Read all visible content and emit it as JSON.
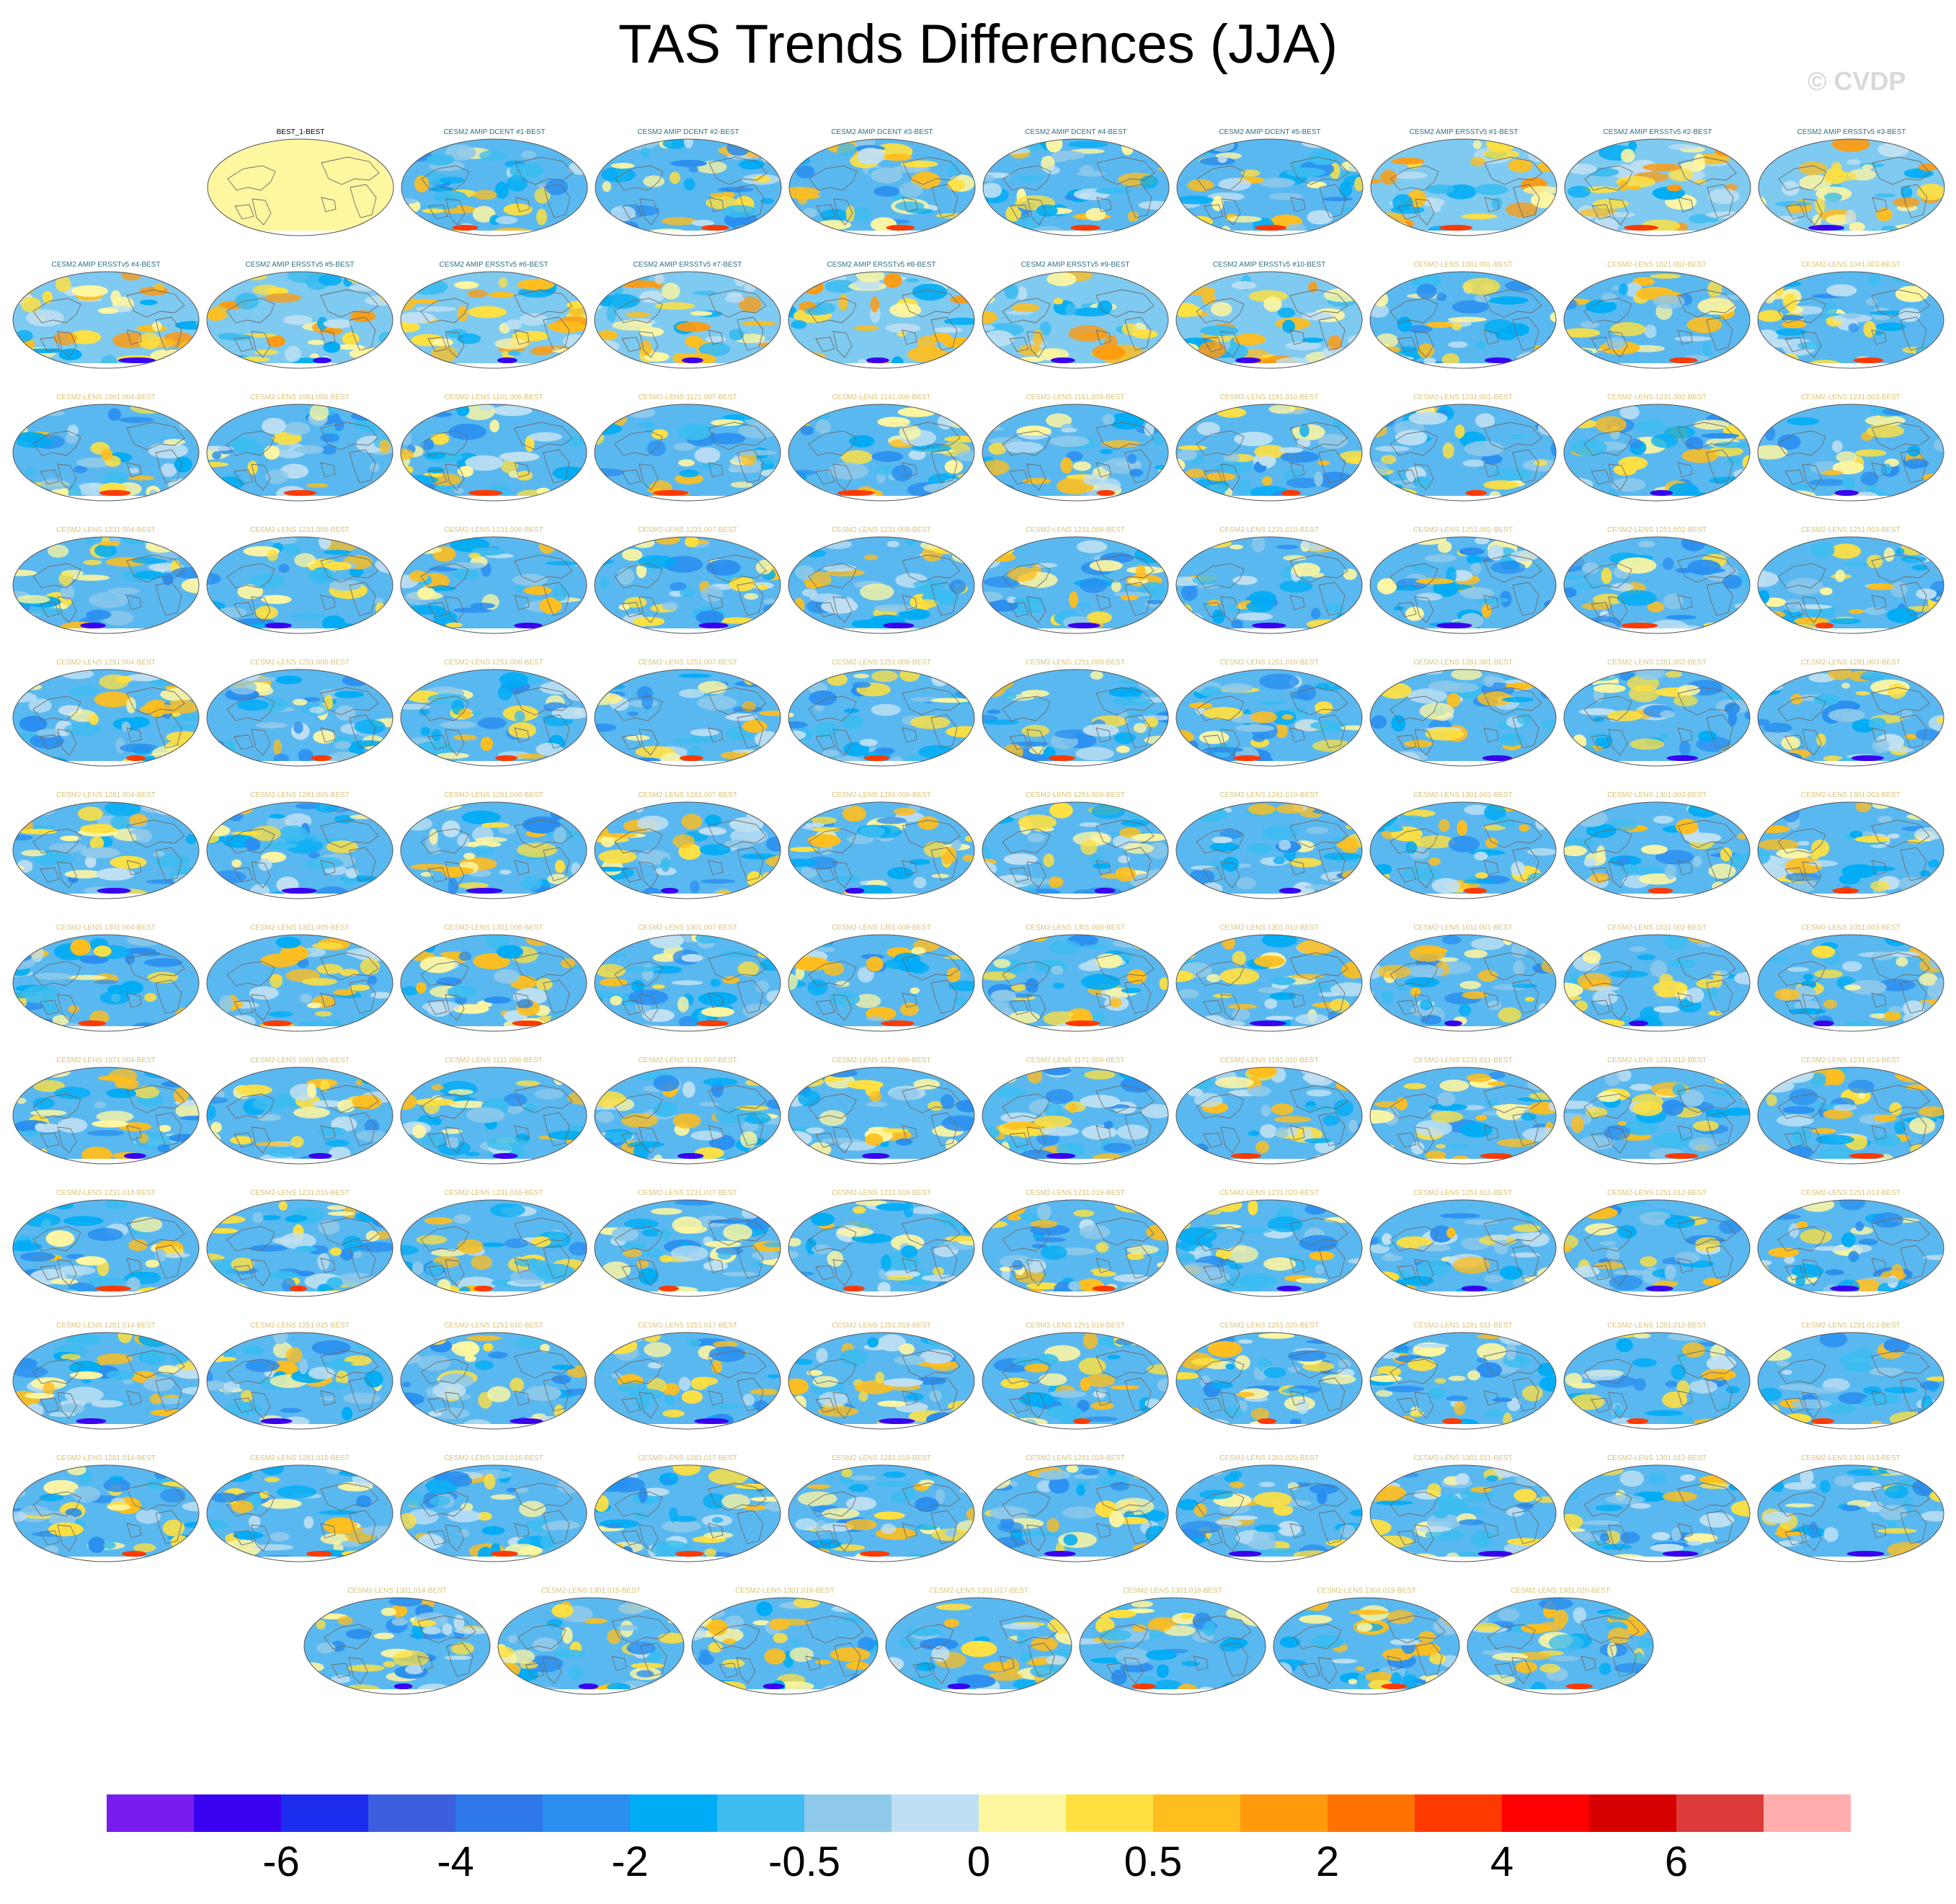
{
  "title": "TAS Trends Differences (JJA)",
  "watermark": "© CVDP",
  "chart_data": {
    "type": "heatmap",
    "title": "TAS Trends Differences (JJA)",
    "colorbar": {
      "colors": [
        "#7a1cf0",
        "#3a00f0",
        "#1c2df0",
        "#3c5fe0",
        "#2f78ec",
        "#2a8ff0",
        "#00acf5",
        "#3cbcf0",
        "#8ec9ea",
        "#bfe0f3",
        "#fff6a0",
        "#ffe040",
        "#ffbe1e",
        "#ff9a0e",
        "#ff7200",
        "#ff3a00",
        "#ff0000",
        "#d70000",
        "#dd3a3a",
        "#ffadad"
      ],
      "tick_labels": [
        "-6",
        "-4",
        "-2",
        "-0.5",
        "0",
        "0.5",
        "2",
        "4",
        "6"
      ],
      "tick_boundaries": [
        2,
        4,
        6,
        8,
        10,
        12,
        14,
        16,
        18
      ]
    },
    "panels": [
      {
        "label": "BEST_1-BEST",
        "kind": "ref"
      },
      {
        "label": "CESM2 AMIP DCENT #1-BEST",
        "kind": "dcent"
      },
      {
        "label": "CESM2 AMIP DCENT #2-BEST",
        "kind": "dcent"
      },
      {
        "label": "CESM2 AMIP DCENT #3-BEST",
        "kind": "dcent"
      },
      {
        "label": "CESM2 AMIP DCENT #4-BEST",
        "kind": "dcent"
      },
      {
        "label": "CESM2 AMIP DCENT #5-BEST",
        "kind": "dcent"
      },
      {
        "label": "CESM2 AMIP ERSSTv5 #1-BEST",
        "kind": "ersst"
      },
      {
        "label": "CESM2 AMIP ERSSTv5 #2-BEST",
        "kind": "ersst"
      },
      {
        "label": "CESM2 AMIP ERSSTv5 #3-BEST",
        "kind": "ersst"
      },
      {
        "label": "CESM2 AMIP ERSSTv5 #4-BEST",
        "kind": "ersst"
      },
      {
        "label": "CESM2 AMIP ERSSTv5 #5-BEST",
        "kind": "ersst"
      },
      {
        "label": "CESM2 AMIP ERSSTv5 #6-BEST",
        "kind": "ersst"
      },
      {
        "label": "CESM2 AMIP ERSSTv5 #7-BEST",
        "kind": "ersst"
      },
      {
        "label": "CESM2 AMIP ERSSTv5 #8-BEST",
        "kind": "ersst"
      },
      {
        "label": "CESM2 AMIP ERSSTv5 #9-BEST",
        "kind": "ersst"
      },
      {
        "label": "CESM2 AMIP ERSSTv5 #10-BEST",
        "kind": "ersst"
      },
      {
        "label": "CESM2-LENS 1001.001-BEST",
        "kind": "lens"
      },
      {
        "label": "CESM2-LENS 1021.002-BEST",
        "kind": "lens"
      },
      {
        "label": "CESM2-LENS 1041.003-BEST",
        "kind": "lens"
      },
      {
        "label": "CESM2-LENS 1061.004-BEST",
        "kind": "lens"
      },
      {
        "label": "CESM2-LENS 1081.005-BEST",
        "kind": "lens"
      },
      {
        "label": "CESM2-LENS 1101.006-BEST",
        "kind": "lens"
      },
      {
        "label": "CESM2-LENS 1121.007-BEST",
        "kind": "lens"
      },
      {
        "label": "CESM2-LENS 1141.008-BEST",
        "kind": "lens"
      },
      {
        "label": "CESM2-LENS 1161.009-BEST",
        "kind": "lens"
      },
      {
        "label": "CESM2-LENS 1181.010-BEST",
        "kind": "lens"
      },
      {
        "label": "CESM2-LENS 1231.001-BEST",
        "kind": "lens"
      },
      {
        "label": "CESM2-LENS 1231.002-BEST",
        "kind": "lens"
      },
      {
        "label": "CESM2-LENS 1231.003-BEST",
        "kind": "lens"
      },
      {
        "label": "CESM2-LENS 1231.004-BEST",
        "kind": "lens"
      },
      {
        "label": "CESM2-LENS 1231.005-BEST",
        "kind": "lens"
      },
      {
        "label": "CESM2-LENS 1231.006-BEST",
        "kind": "lens"
      },
      {
        "label": "CESM2-LENS 1231.007-BEST",
        "kind": "lens"
      },
      {
        "label": "CESM2-LENS 1231.008-BEST",
        "kind": "lens"
      },
      {
        "label": "CESM2-LENS 1231.009-BEST",
        "kind": "lens"
      },
      {
        "label": "CESM2-LENS 1231.010-BEST",
        "kind": "lens"
      },
      {
        "label": "CESM2-LENS 1251.001-BEST",
        "kind": "lens"
      },
      {
        "label": "CESM2-LENS 1251.002-BEST",
        "kind": "lens"
      },
      {
        "label": "CESM2-LENS 1251.003-BEST",
        "kind": "lens"
      },
      {
        "label": "CESM2-LENS 1251.004-BEST",
        "kind": "lens"
      },
      {
        "label": "CESM2-LENS 1251.005-BEST",
        "kind": "lens"
      },
      {
        "label": "CESM2-LENS 1251.006-BEST",
        "kind": "lens"
      },
      {
        "label": "CESM2-LENS 1251.007-BEST",
        "kind": "lens"
      },
      {
        "label": "CESM2-LENS 1251.008-BEST",
        "kind": "lens"
      },
      {
        "label": "CESM2-LENS 1251.009-BEST",
        "kind": "lens"
      },
      {
        "label": "CESM2-LENS 1251.010-BEST",
        "kind": "lens"
      },
      {
        "label": "CESM2-LENS 1281.001-BEST",
        "kind": "lens"
      },
      {
        "label": "CESM2-LENS 1281.002-BEST",
        "kind": "lens"
      },
      {
        "label": "CESM2-LENS 1281.003-BEST",
        "kind": "lens"
      },
      {
        "label": "CESM2-LENS 1281.004-BEST",
        "kind": "lens"
      },
      {
        "label": "CESM2-LENS 1281.005-BEST",
        "kind": "lens"
      },
      {
        "label": "CESM2-LENS 1281.006-BEST",
        "kind": "lens"
      },
      {
        "label": "CESM2-LENS 1281.007-BEST",
        "kind": "lens"
      },
      {
        "label": "CESM2-LENS 1281.008-BEST",
        "kind": "lens"
      },
      {
        "label": "CESM2-LENS 1281.009-BEST",
        "kind": "lens"
      },
      {
        "label": "CESM2-LENS 1281.010-BEST",
        "kind": "lens"
      },
      {
        "label": "CESM2-LENS 1301.001-BEST",
        "kind": "lens"
      },
      {
        "label": "CESM2-LENS 1301.002-BEST",
        "kind": "lens"
      },
      {
        "label": "CESM2-LENS 1301.003-BEST",
        "kind": "lens"
      },
      {
        "label": "CESM2-LENS 1301.004-BEST",
        "kind": "lens"
      },
      {
        "label": "CESM2-LENS 1301.005-BEST",
        "kind": "lens"
      },
      {
        "label": "CESM2-LENS 1301.006-BEST",
        "kind": "lens"
      },
      {
        "label": "CESM2-LENS 1301.007-BEST",
        "kind": "lens"
      },
      {
        "label": "CESM2-LENS 1301.008-BEST",
        "kind": "lens"
      },
      {
        "label": "CESM2-LENS 1301.009-BEST",
        "kind": "lens"
      },
      {
        "label": "CESM2-LENS 1301.010-BEST",
        "kind": "lens"
      },
      {
        "label": "CESM2-LENS 1011.001-BEST",
        "kind": "lens"
      },
      {
        "label": "CESM2-LENS 1031.002-BEST",
        "kind": "lens"
      },
      {
        "label": "CESM2-LENS 1051.003-BEST",
        "kind": "lens"
      },
      {
        "label": "CESM2-LENS 1071.004-BEST",
        "kind": "lens"
      },
      {
        "label": "CESM2-LENS 1091.005-BEST",
        "kind": "lens"
      },
      {
        "label": "CESM2-LENS 1111.006-BEST",
        "kind": "lens"
      },
      {
        "label": "CESM2-LENS 1131.007-BEST",
        "kind": "lens"
      },
      {
        "label": "CESM2-LENS 1151.008-BEST",
        "kind": "lens"
      },
      {
        "label": "CESM2-LENS 1171.009-BEST",
        "kind": "lens"
      },
      {
        "label": "CESM2-LENS 1191.010-BEST",
        "kind": "lens"
      },
      {
        "label": "CESM2-LENS 1231.011-BEST",
        "kind": "lens"
      },
      {
        "label": "CESM2-LENS 1231.012-BEST",
        "kind": "lens"
      },
      {
        "label": "CESM2-LENS 1231.013-BEST",
        "kind": "lens"
      },
      {
        "label": "CESM2-LENS 1231.014-BEST",
        "kind": "lens"
      },
      {
        "label": "CESM2-LENS 1231.015-BEST",
        "kind": "lens"
      },
      {
        "label": "CESM2-LENS 1231.016-BEST",
        "kind": "lens"
      },
      {
        "label": "CESM2-LENS 1231.017-BEST",
        "kind": "lens"
      },
      {
        "label": "CESM2-LENS 1231.018-BEST",
        "kind": "lens"
      },
      {
        "label": "CESM2-LENS 1231.019-BEST",
        "kind": "lens"
      },
      {
        "label": "CESM2-LENS 1231.020-BEST",
        "kind": "lens"
      },
      {
        "label": "CESM2-LENS 1251.011-BEST",
        "kind": "lens"
      },
      {
        "label": "CESM2-LENS 1251.012-BEST",
        "kind": "lens"
      },
      {
        "label": "CESM2-LENS 1251.013-BEST",
        "kind": "lens"
      },
      {
        "label": "CESM2-LENS 1251.014-BEST",
        "kind": "lens"
      },
      {
        "label": "CESM2-LENS 1251.015-BEST",
        "kind": "lens"
      },
      {
        "label": "CESM2-LENS 1251.016-BEST",
        "kind": "lens"
      },
      {
        "label": "CESM2-LENS 1251.017-BEST",
        "kind": "lens"
      },
      {
        "label": "CESM2-LENS 1251.018-BEST",
        "kind": "lens"
      },
      {
        "label": "CESM2-LENS 1251.019-BEST",
        "kind": "lens"
      },
      {
        "label": "CESM2-LENS 1251.020-BEST",
        "kind": "lens"
      },
      {
        "label": "CESM2-LENS 1281.011-BEST",
        "kind": "lens"
      },
      {
        "label": "CESM2-LENS 1281.012-BEST",
        "kind": "lens"
      },
      {
        "label": "CESM2-LENS 1281.013-BEST",
        "kind": "lens"
      },
      {
        "label": "CESM2-LENS 1281.014-BEST",
        "kind": "lens"
      },
      {
        "label": "CESM2-LENS 1281.015-BEST",
        "kind": "lens"
      },
      {
        "label": "CESM2-LENS 1281.016-BEST",
        "kind": "lens"
      },
      {
        "label": "CESM2-LENS 1281.017-BEST",
        "kind": "lens"
      },
      {
        "label": "CESM2-LENS 1281.018-BEST",
        "kind": "lens"
      },
      {
        "label": "CESM2-LENS 1281.019-BEST",
        "kind": "lens"
      },
      {
        "label": "CESM2-LENS 1281.020-BEST",
        "kind": "lens"
      },
      {
        "label": "CESM2-LENS 1301.011-BEST",
        "kind": "lens"
      },
      {
        "label": "CESM2-LENS 1301.012-BEST",
        "kind": "lens"
      },
      {
        "label": "CESM2-LENS 1301.013-BEST",
        "kind": "lens"
      },
      {
        "label": "CESM2-LENS 1301.014-BEST",
        "kind": "lens"
      },
      {
        "label": "CESM2-LENS 1301.015-BEST",
        "kind": "lens"
      },
      {
        "label": "CESM2-LENS 1301.016-BEST",
        "kind": "lens"
      },
      {
        "label": "CESM2-LENS 1301.017-BEST",
        "kind": "lens"
      },
      {
        "label": "CESM2-LENS 1301.018-BEST",
        "kind": "lens"
      },
      {
        "label": "CESM2-LENS 1301.019-BEST",
        "kind": "lens"
      },
      {
        "label": "CESM2-LENS 1301.020-BEST",
        "kind": "lens"
      }
    ]
  }
}
